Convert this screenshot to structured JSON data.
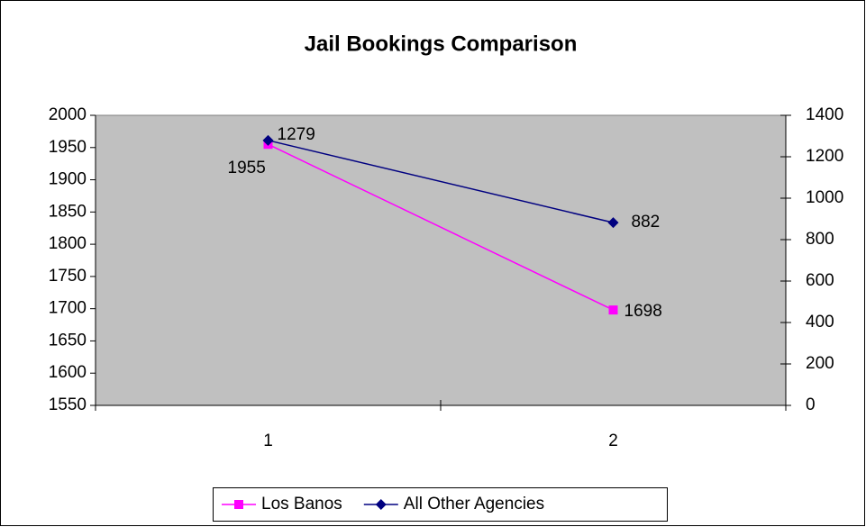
{
  "chart_data": {
    "type": "line",
    "title": "Jail Bookings Comparison",
    "categories": [
      "1",
      "2"
    ],
    "series": [
      {
        "name": "Los Banos",
        "color": "#ff00ff",
        "values": [
          1955,
          1698
        ]
      },
      {
        "name": "All Other Agencies",
        "color": "#000080",
        "values": [
          1279,
          882
        ],
        "axis": "y2"
      }
    ],
    "ylim": [
      1550,
      2000
    ],
    "yticks": [
      1550,
      1600,
      1650,
      1700,
      1750,
      1800,
      1850,
      1900,
      1950,
      2000
    ],
    "y2lim": [
      0,
      1400
    ],
    "y2ticks": [
      0,
      200,
      400,
      600,
      800,
      1000,
      1200,
      1400
    ],
    "plot_background": "#c0c0c0",
    "legend": "bottom"
  }
}
